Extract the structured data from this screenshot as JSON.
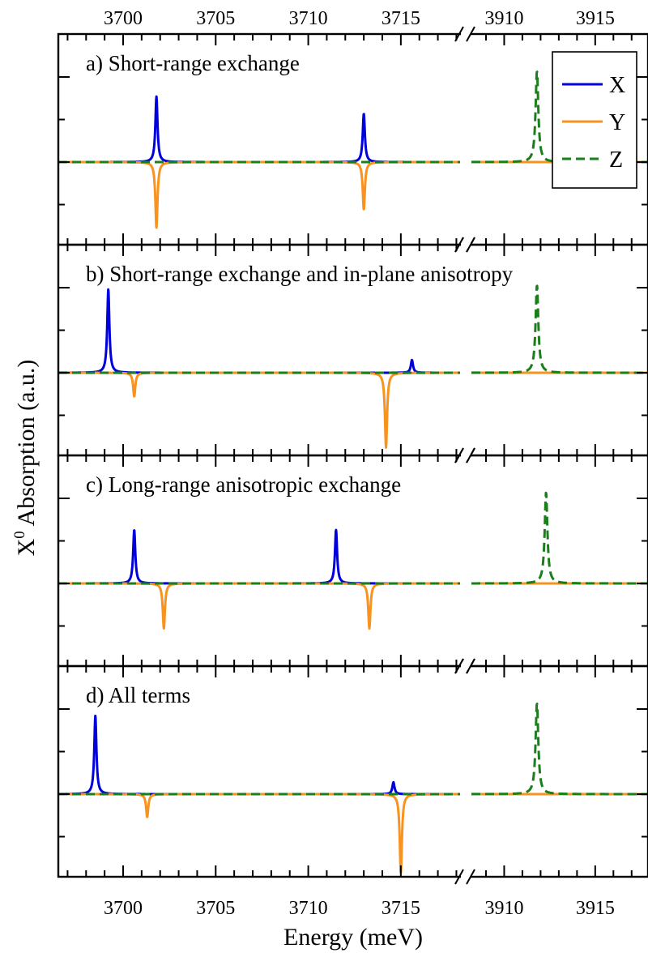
{
  "chart_data": {
    "type": "line",
    "xlabel": "Energy (meV)",
    "ylabel_main": "X",
    "ylabel_superscript": "0",
    "ylabel_rest": " Absorption (a.u.)",
    "x_segments": [
      {
        "xlim": [
          3696.5,
          3718.2
        ],
        "ticks": [
          3700,
          3705,
          3710,
          3715
        ]
      },
      {
        "xlim": [
          3908.2,
          3917.9
        ],
        "ticks": [
          3910,
          3915
        ]
      }
    ],
    "axis_break": true,
    "legend": {
      "placement": "top-right of panel a",
      "entries": [
        {
          "name": "X",
          "color": "#0000dd",
          "dash": "solid"
        },
        {
          "name": "Y",
          "color": "#f7931e",
          "dash": "solid"
        },
        {
          "name": "Z",
          "color": "#1a7f1a",
          "dash": "dashed"
        }
      ]
    },
    "panels": [
      {
        "title": "a) Short-range exchange",
        "ylim": [
          -1.0,
          1.0
        ],
        "series": [
          {
            "name": "X",
            "peaks": [
              {
                "x": 3701.8,
                "y": 0.77
              },
              {
                "x": 3713.0,
                "y": 0.57
              }
            ]
          },
          {
            "name": "Y",
            "peaks": [
              {
                "x": 3701.8,
                "y": -0.77
              },
              {
                "x": 3713.0,
                "y": -0.56
              }
            ]
          },
          {
            "name": "Z",
            "peaks": [
              {
                "x": 3911.8,
                "y": 1.07
              }
            ]
          }
        ]
      },
      {
        "title": "b) Short-range exchange and in-plane anisotropy",
        "ylim": [
          -1.0,
          1.0
        ],
        "series": [
          {
            "name": "X",
            "peaks": [
              {
                "x": 3699.2,
                "y": 0.98
              },
              {
                "x": 3715.6,
                "y": 0.15
              }
            ]
          },
          {
            "name": "Y",
            "peaks": [
              {
                "x": 3700.6,
                "y": -0.28
              },
              {
                "x": 3714.2,
                "y": -0.88
              }
            ]
          },
          {
            "name": "Z",
            "peaks": [
              {
                "x": 3911.8,
                "y": 1.03
              }
            ]
          }
        ]
      },
      {
        "title": "c) Long-range anisotropic exchange",
        "ylim": [
          -1.0,
          1.0
        ],
        "series": [
          {
            "name": "X",
            "peaks": [
              {
                "x": 3700.6,
                "y": 0.63
              },
              {
                "x": 3711.5,
                "y": 0.63
              }
            ]
          },
          {
            "name": "Y",
            "peaks": [
              {
                "x": 3702.2,
                "y": -0.53
              },
              {
                "x": 3713.3,
                "y": -0.53
              }
            ]
          },
          {
            "name": "Z",
            "peaks": [
              {
                "x": 3912.3,
                "y": 1.07
              }
            ]
          }
        ]
      },
      {
        "title": "d) All terms",
        "ylim": [
          -1.0,
          1.0
        ],
        "series": [
          {
            "name": "X",
            "peaks": [
              {
                "x": 3698.5,
                "y": 0.92
              },
              {
                "x": 3714.6,
                "y": 0.14
              }
            ]
          },
          {
            "name": "Y",
            "peaks": [
              {
                "x": 3701.3,
                "y": -0.27
              },
              {
                "x": 3715.0,
                "y": -0.93
              }
            ]
          },
          {
            "name": "Z",
            "peaks": [
              {
                "x": 3911.8,
                "y": 1.07
              }
            ]
          }
        ]
      }
    ]
  }
}
